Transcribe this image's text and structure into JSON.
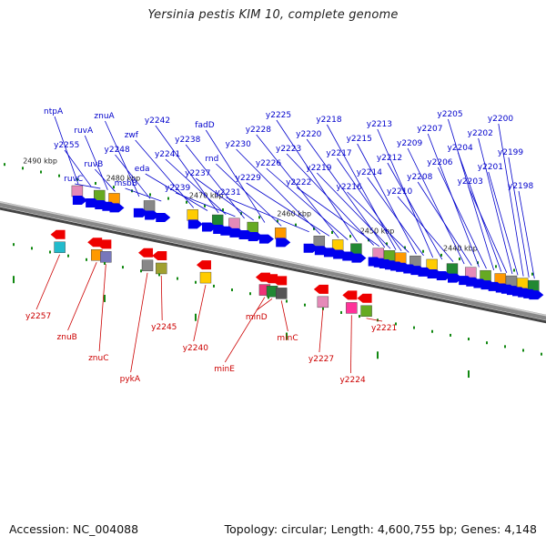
{
  "title": "Yersinia pestis KIM 10, complete genome",
  "footer": {
    "accession": "Accession: NC_004088",
    "topology": "Topology: circular; Length: 4,600,755 bp; Genes: 4,148"
  },
  "colors": {
    "forward_gene": "#0000ee",
    "reverse_gene": "#ee0000",
    "forward_label": "#0000cc",
    "reverse_label": "#cc0000",
    "tick": "#118811",
    "backbone": "#888888"
  },
  "scale_labels": [
    {
      "text": "2490 kbp",
      "pos": 0.015
    },
    {
      "text": "2480 kbp",
      "pos": 0.105
    },
    {
      "text": "2470 kbp",
      "pos": 0.195
    },
    {
      "text": "2460 kbp",
      "pos": 0.29
    },
    {
      "text": "2450 kbp",
      "pos": 0.38
    },
    {
      "text": "2440 kbp",
      "pos": 0.47
    }
  ],
  "forward_genes": [
    {
      "name": "ntpA",
      "pos": 0.06
    },
    {
      "name": "y2255",
      "pos": 0.074
    },
    {
      "name": "ruvC",
      "pos": 0.084
    },
    {
      "name": "ruvA",
      "pos": 0.092
    },
    {
      "name": "ruvB",
      "pos": 0.1
    },
    {
      "name": "znuA",
      "pos": 0.126
    },
    {
      "name": "y2248",
      "pos": 0.138
    },
    {
      "name": "msbB",
      "pos": 0.15
    },
    {
      "name": "zwf",
      "pos": 0.185
    },
    {
      "name": "eda",
      "pos": 0.2
    },
    {
      "name": "y2242",
      "pos": 0.212
    },
    {
      "name": "y2241",
      "pos": 0.22
    },
    {
      "name": "y2239",
      "pos": 0.23
    },
    {
      "name": "y2238",
      "pos": 0.24
    },
    {
      "name": "y2237",
      "pos": 0.25
    },
    {
      "name": "fadD",
      "pos": 0.262
    },
    {
      "name": "rnd",
      "pos": 0.28
    },
    {
      "name": "y2231",
      "pos": 0.31
    },
    {
      "name": "y2230",
      "pos": 0.322
    },
    {
      "name": "y2229",
      "pos": 0.332
    },
    {
      "name": "y2228",
      "pos": 0.342
    },
    {
      "name": "y2226",
      "pos": 0.352
    },
    {
      "name": "y2225",
      "pos": 0.362
    },
    {
      "name": "y2223",
      "pos": 0.38
    },
    {
      "name": "y2222",
      "pos": 0.386
    },
    {
      "name": "y2220",
      "pos": 0.392
    },
    {
      "name": "y2219",
      "pos": 0.398
    },
    {
      "name": "y2218",
      "pos": 0.404
    },
    {
      "name": "y2217",
      "pos": 0.41
    },
    {
      "name": "y2216",
      "pos": 0.418
    },
    {
      "name": "y2215",
      "pos": 0.426
    },
    {
      "name": "y2214",
      "pos": 0.434
    },
    {
      "name": "y2213",
      "pos": 0.444
    },
    {
      "name": "y2212",
      "pos": 0.454
    },
    {
      "name": "y2210",
      "pos": 0.466
    },
    {
      "name": "y2209",
      "pos": 0.478
    },
    {
      "name": "y2208",
      "pos": 0.486
    },
    {
      "name": "y2207",
      "pos": 0.494
    },
    {
      "name": "y2206",
      "pos": 0.502
    },
    {
      "name": "y2205",
      "pos": 0.51
    },
    {
      "name": "y2204",
      "pos": 0.518
    },
    {
      "name": "y2203",
      "pos": 0.524
    },
    {
      "name": "y2202",
      "pos": 0.53
    },
    {
      "name": "y2201",
      "pos": 0.536
    },
    {
      "name": "y2200",
      "pos": 0.542
    },
    {
      "name": "y2199",
      "pos": 0.548
    },
    {
      "name": "y2198",
      "pos": 0.554
    }
  ],
  "reverse_genes": [
    {
      "name": "y2257",
      "pos": 0.04
    },
    {
      "name": "znuB",
      "pos": 0.08
    },
    {
      "name": "znuC",
      "pos": 0.09
    },
    {
      "name": "pykA",
      "pos": 0.135
    },
    {
      "name": "y2245",
      "pos": 0.15
    },
    {
      "name": "y2240",
      "pos": 0.198
    },
    {
      "name": "minE",
      "pos": 0.262
    },
    {
      "name": "minD",
      "pos": 0.27
    },
    {
      "name": "minC",
      "pos": 0.28
    },
    {
      "name": "y2227",
      "pos": 0.325
    },
    {
      "name": "y2224",
      "pos": 0.356
    },
    {
      "name": "y2221",
      "pos": 0.372
    }
  ]
}
